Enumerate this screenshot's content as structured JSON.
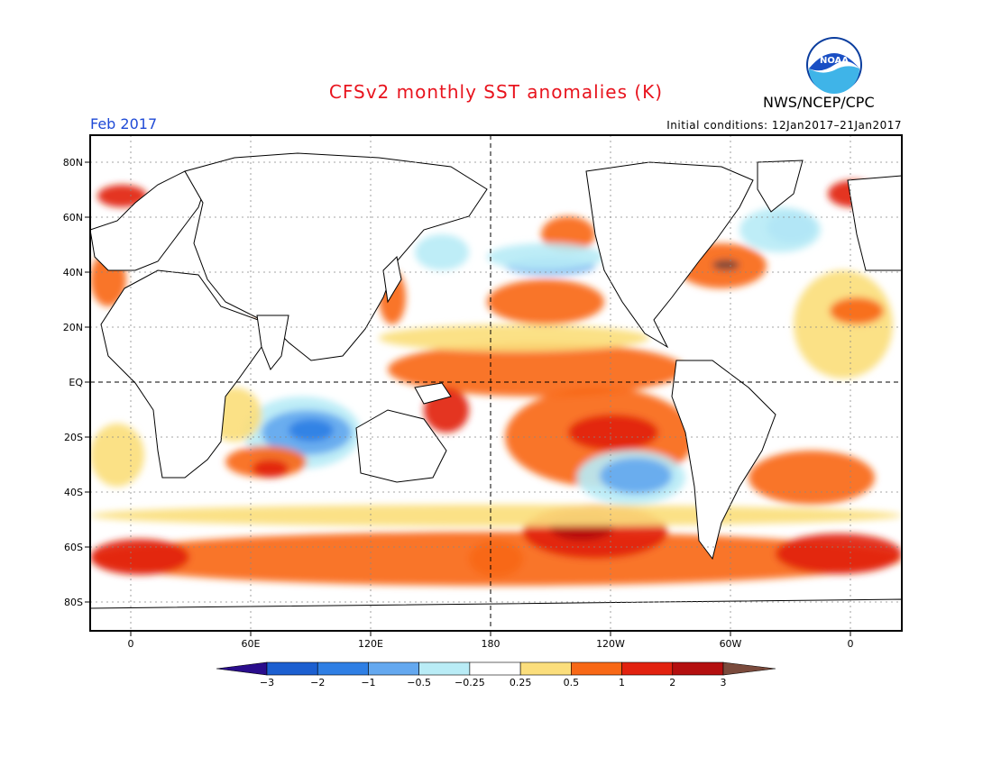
{
  "title": "CFSv2 monthly SST anomalies (K)",
  "agency": "NWS/NCEP/CPC",
  "month": "Feb 2017",
  "initial_conditions": "Initial conditions: 12Jan2017–21Jan2017",
  "logo_text": "NOAA",
  "lat_labels": [
    "80N",
    "60N",
    "40N",
    "20N",
    "EQ",
    "20S",
    "40S",
    "60S",
    "80S"
  ],
  "lon_labels": [
    "0",
    "60E",
    "120E",
    "180",
    "120W",
    "60W",
    "0"
  ],
  "colorbar": {
    "colors": [
      "#2a0d8c",
      "#1c5fd0",
      "#2f7fe4",
      "#64a8ef",
      "#b9ecf6",
      "#ffffff",
      "#fbde7c",
      "#f86816",
      "#e2220f",
      "#b40f0f",
      "#7a4a3c"
    ],
    "labels": [
      "−3",
      "−2",
      "−1",
      "−0.5",
      "−0.25",
      "0.25",
      "0.5",
      "1",
      "2",
      "3"
    ]
  },
  "palette": {
    "warm_strong": "#b40f0f",
    "warm_red": "#e2220f",
    "warm_orange": "#f86816",
    "warm_yellow": "#fbde7c",
    "cool_light": "#b9ecf6",
    "cool_mid": "#64a8ef",
    "cool_blue": "#2f7fe4",
    "extreme": "#7a4a3c"
  }
}
